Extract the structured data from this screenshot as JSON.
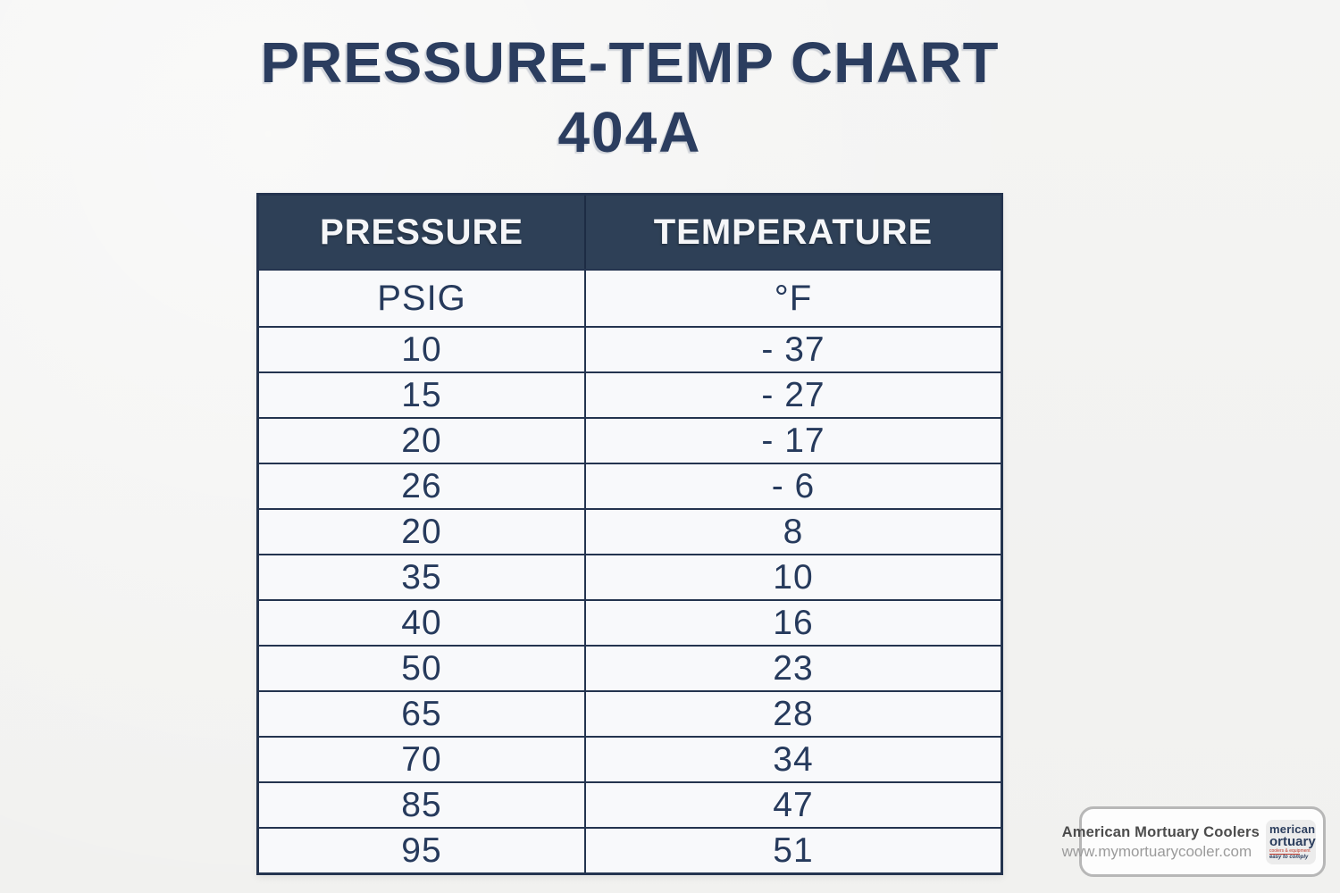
{
  "title": {
    "line1": "PRESSURE-TEMP CHART",
    "line2": "404A"
  },
  "table": {
    "headers": {
      "pressure": "PRESSURE",
      "temperature": "TEMPERATURE"
    },
    "units": {
      "pressure": "PSIG",
      "temperature": "°F"
    },
    "rows": [
      {
        "pressure": "10",
        "temperature": "- 37"
      },
      {
        "pressure": "15",
        "temperature": "- 27"
      },
      {
        "pressure": "20",
        "temperature": "- 17"
      },
      {
        "pressure": "26",
        "temperature": "- 6"
      },
      {
        "pressure": "20",
        "temperature": "8"
      },
      {
        "pressure": "35",
        "temperature": "10"
      },
      {
        "pressure": "40",
        "temperature": "16"
      },
      {
        "pressure": "50",
        "temperature": "23"
      },
      {
        "pressure": "65",
        "temperature": "28"
      },
      {
        "pressure": "70",
        "temperature": "34"
      },
      {
        "pressure": "85",
        "temperature": "47"
      },
      {
        "pressure": "95",
        "temperature": "51"
      }
    ]
  },
  "watermark": {
    "company": "American Mortuary Coolers",
    "website": "www.mymortuarycooler.com",
    "logo": {
      "line1": "merican",
      "line2": "ortuary",
      "tagline_red": "coolers & equipment",
      "tagline_navy": "easy to comply"
    }
  },
  "colors": {
    "navy_text": "#2b3d5f",
    "header_bg": "#2e4057",
    "border": "#24344f",
    "cell_bg": "#f8f9fb",
    "page_bg": "#f1f1ef",
    "logo_red": "#c0392b"
  },
  "chart_data": {
    "type": "table",
    "title": "PRESSURE-TEMP CHART 404A",
    "refrigerant": "404A",
    "columns": [
      "PRESSURE (PSIG)",
      "TEMPERATURE (°F)"
    ],
    "pressure_psig": [
      10,
      15,
      20,
      26,
      20,
      35,
      40,
      50,
      65,
      70,
      85,
      95
    ],
    "temperature_f": [
      -37,
      -27,
      -17,
      -6,
      8,
      10,
      16,
      23,
      28,
      34,
      47,
      51
    ]
  }
}
